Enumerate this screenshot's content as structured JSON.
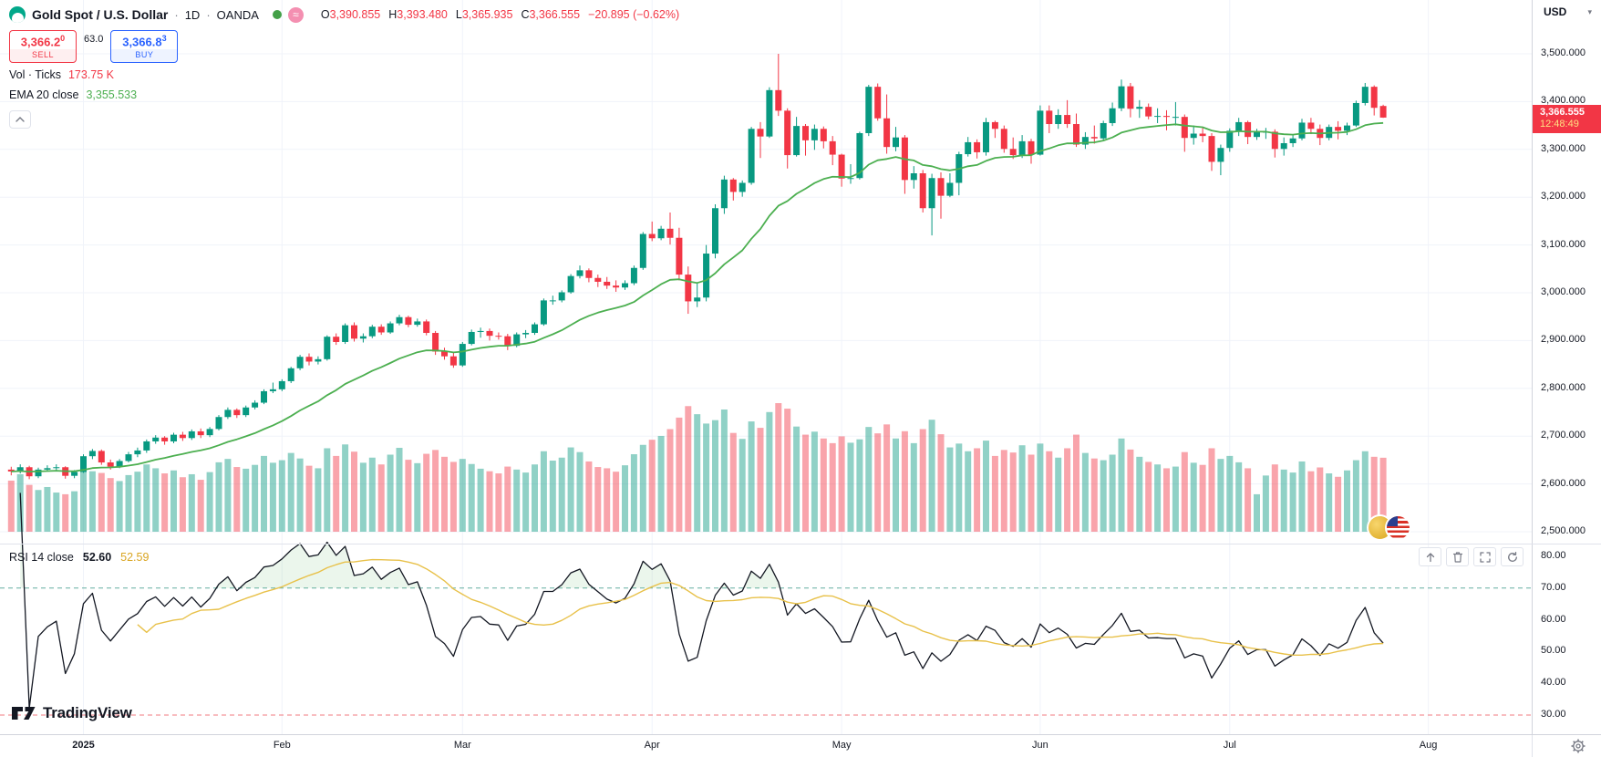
{
  "header": {
    "symbol": "Gold Spot / U.S. Dollar",
    "separator": "·",
    "interval": "1D",
    "exchange": "OANDA",
    "currency": "USD",
    "ohlc": {
      "o_label": "O",
      "o": "3,390.855",
      "h_label": "H",
      "h": "3,393.480",
      "l_label": "L",
      "l": "3,365.935",
      "c_label": "C",
      "c": "3,366.555",
      "change": "−20.895 (−0.62%)"
    }
  },
  "icons": {
    "caret_down": "▾",
    "approx": "≈"
  },
  "trade_panel": {
    "sell_price_main": "3,366.2",
    "sell_price_sup": "0",
    "sell_label": "SELL",
    "spread": "63.0",
    "buy_price_main": "3,366.8",
    "buy_price_sup": "3",
    "buy_label": "BUY"
  },
  "legends": {
    "volume": {
      "title": "Vol · Ticks",
      "value": "173.75 K"
    },
    "ema": {
      "title": "EMA 20 close",
      "value": "3,355.533"
    },
    "rsi": {
      "title": "RSI 14 close",
      "value": "52.60",
      "ma_value": "52.59"
    }
  },
  "price_label": {
    "price": "3,366.555",
    "countdown": "12:48:49"
  },
  "watermark": "TradingView",
  "price_axis": {
    "labels": [
      {
        "text": "3,500.000",
        "value": 3500
      },
      {
        "text": "3,400.000",
        "value": 3400
      },
      {
        "text": "3,300.000",
        "value": 3300
      },
      {
        "text": "3,200.000",
        "value": 3200
      },
      {
        "text": "3,100.000",
        "value": 3100
      },
      {
        "text": "3,000.000",
        "value": 3000
      },
      {
        "text": "2,900.000",
        "value": 2900
      },
      {
        "text": "2,800.000",
        "value": 2800
      },
      {
        "text": "2,700.000",
        "value": 2700
      },
      {
        "text": "2,600.000",
        "value": 2600
      },
      {
        "text": "2,500.000",
        "value": 2500
      }
    ]
  },
  "rsi_axis": {
    "labels": [
      {
        "text": "80.00",
        "value": 80
      },
      {
        "text": "70.00",
        "value": 70
      },
      {
        "text": "60.00",
        "value": 60
      },
      {
        "text": "50.00",
        "value": 50
      },
      {
        "text": "40.00",
        "value": 40
      },
      {
        "text": "30.00",
        "value": 30
      }
    ]
  },
  "time_axis": {
    "labels": [
      {
        "text": "2025",
        "index": 8,
        "strong": true
      },
      {
        "text": "Feb",
        "index": 30
      },
      {
        "text": "Mar",
        "index": 50
      },
      {
        "text": "Apr",
        "index": 71
      },
      {
        "text": "May",
        "index": 92
      },
      {
        "text": "Jun",
        "index": 114
      },
      {
        "text": "Jul",
        "index": 135
      },
      {
        "text": "Aug",
        "index": 157
      }
    ]
  },
  "colors": {
    "up": "#089981",
    "down": "#F23645",
    "volume_up": "rgba(8,153,129,0.45)",
    "volume_down": "rgba(242,54,69,0.45)",
    "ema": "#4CAF50",
    "rsi_line": "#131722",
    "rsi_ma": "#E8C14A",
    "rsi_fill": "rgba(102,187,106,0.13)",
    "band_upper": "#63ADA0",
    "band_lower": "#F07B81",
    "buy": "#2962FF",
    "sell": "#F23645",
    "grid": "#F0F3FA",
    "axis_text": "#131722",
    "muted_text": "#787B86",
    "price_tag_bg": "#F23645",
    "price_tag_text": "#FFFFFF",
    "countdown_text": "#FFE082"
  },
  "chart_data": {
    "type": "candlestick+volume+rsi",
    "title": "Gold Spot / U.S. Dollar, 1D, OANDA",
    "ylabel": "USD",
    "ylim": [
      2450,
      3610
    ],
    "rsi_ylim": [
      25,
      85
    ],
    "ema_period": 20,
    "rsi_period": 14,
    "rsi_bands": [
      70,
      30
    ],
    "candles": [
      [
        2630,
        2636,
        2618,
        2626
      ],
      [
        2626,
        2641,
        2622,
        2635
      ],
      [
        2635,
        2638,
        2610,
        2616
      ],
      [
        2616,
        2634,
        2612,
        2630
      ],
      [
        2630,
        2639,
        2626,
        2633
      ],
      [
        2633,
        2641,
        2628,
        2635
      ],
      [
        2635,
        2637,
        2611,
        2617
      ],
      [
        2617,
        2629,
        2612,
        2625
      ],
      [
        2625,
        2662,
        2623,
        2658
      ],
      [
        2658,
        2673,
        2652,
        2669
      ],
      [
        2669,
        2672,
        2640,
        2645
      ],
      [
        2645,
        2651,
        2630,
        2636
      ],
      [
        2636,
        2652,
        2633,
        2648
      ],
      [
        2648,
        2667,
        2645,
        2662
      ],
      [
        2662,
        2676,
        2656,
        2670
      ],
      [
        2670,
        2693,
        2665,
        2689
      ],
      [
        2689,
        2702,
        2684,
        2697
      ],
      [
        2697,
        2700,
        2682,
        2689
      ],
      [
        2689,
        2707,
        2685,
        2703
      ],
      [
        2703,
        2709,
        2690,
        2696
      ],
      [
        2696,
        2714,
        2692,
        2710
      ],
      [
        2710,
        2716,
        2696,
        2702
      ],
      [
        2702,
        2719,
        2698,
        2715
      ],
      [
        2715,
        2744,
        2712,
        2740
      ],
      [
        2740,
        2760,
        2736,
        2755
      ],
      [
        2755,
        2758,
        2738,
        2744
      ],
      [
        2744,
        2764,
        2740,
        2760
      ],
      [
        2760,
        2775,
        2756,
        2770
      ],
      [
        2770,
        2798,
        2767,
        2794
      ],
      [
        2794,
        2812,
        2790,
        2798
      ],
      [
        2798,
        2819,
        2794,
        2815
      ],
      [
        2815,
        2845,
        2811,
        2842
      ],
      [
        2842,
        2870,
        2838,
        2866
      ],
      [
        2866,
        2873,
        2848,
        2856
      ],
      [
        2856,
        2867,
        2850,
        2861
      ],
      [
        2861,
        2911,
        2858,
        2908
      ],
      [
        2908,
        2915,
        2891,
        2897
      ],
      [
        2897,
        2936,
        2893,
        2932
      ],
      [
        2932,
        2938,
        2898,
        2904
      ],
      [
        2904,
        2915,
        2896,
        2909
      ],
      [
        2909,
        2933,
        2905,
        2929
      ],
      [
        2929,
        2934,
        2912,
        2917
      ],
      [
        2917,
        2940,
        2914,
        2936
      ],
      [
        2936,
        2954,
        2932,
        2949
      ],
      [
        2949,
        2952,
        2928,
        2933
      ],
      [
        2933,
        2946,
        2929,
        2940
      ],
      [
        2940,
        2944,
        2911,
        2916
      ],
      [
        2916,
        2920,
        2870,
        2877
      ],
      [
        2877,
        2885,
        2860,
        2867
      ],
      [
        2867,
        2874,
        2843,
        2848
      ],
      [
        2848,
        2897,
        2845,
        2893
      ],
      [
        2893,
        2923,
        2890,
        2918
      ],
      [
        2918,
        2927,
        2906,
        2920
      ],
      [
        2920,
        2925,
        2900,
        2910
      ],
      [
        2910,
        2917,
        2902,
        2909
      ],
      [
        2909,
        2914,
        2880,
        2889
      ],
      [
        2889,
        2917,
        2886,
        2913
      ],
      [
        2913,
        2922,
        2905,
        2916
      ],
      [
        2916,
        2938,
        2912,
        2934
      ],
      [
        2934,
        2988,
        2931,
        2984
      ],
      [
        2984,
        2994,
        2975,
        2984
      ],
      [
        2984,
        3005,
        2980,
        3001
      ],
      [
        3001,
        3039,
        2998,
        3035
      ],
      [
        3035,
        3057,
        3030,
        3047
      ],
      [
        3047,
        3051,
        3022,
        3031
      ],
      [
        3031,
        3038,
        3012,
        3023
      ],
      [
        3023,
        3033,
        3008,
        3015
      ],
      [
        3015,
        3026,
        3002,
        3011
      ],
      [
        3011,
        3026,
        3006,
        3020
      ],
      [
        3020,
        3057,
        3016,
        3052
      ],
      [
        3052,
        3127,
        3048,
        3123
      ],
      [
        3123,
        3149,
        3108,
        3114
      ],
      [
        3114,
        3140,
        3110,
        3134
      ],
      [
        3134,
        3168,
        3101,
        3115
      ],
      [
        3115,
        3136,
        3026,
        3038
      ],
      [
        3038,
        3055,
        2956,
        2982
      ],
      [
        2982,
        3022,
        2970,
        2990
      ],
      [
        2990,
        3100,
        2982,
        3082
      ],
      [
        3082,
        3185,
        3072,
        3177
      ],
      [
        3177,
        3245,
        3165,
        3237
      ],
      [
        3237,
        3240,
        3193,
        3211
      ],
      [
        3211,
        3235,
        3201,
        3230
      ],
      [
        3230,
        3347,
        3226,
        3343
      ],
      [
        3343,
        3357,
        3282,
        3327
      ],
      [
        3327,
        3430,
        3324,
        3424
      ],
      [
        3424,
        3500,
        3370,
        3381
      ],
      [
        3381,
        3386,
        3260,
        3288
      ],
      [
        3288,
        3368,
        3285,
        3349
      ],
      [
        3349,
        3353,
        3287,
        3319
      ],
      [
        3319,
        3352,
        3299,
        3343
      ],
      [
        3343,
        3348,
        3302,
        3317
      ],
      [
        3317,
        3328,
        3267,
        3289
      ],
      [
        3289,
        3291,
        3222,
        3239
      ],
      [
        3239,
        3269,
        3228,
        3240
      ],
      [
        3240,
        3337,
        3237,
        3334
      ],
      [
        3334,
        3435,
        3328,
        3431
      ],
      [
        3431,
        3438,
        3360,
        3365
      ],
      [
        3365,
        3415,
        3291,
        3305
      ],
      [
        3305,
        3347,
        3296,
        3325
      ],
      [
        3325,
        3330,
        3207,
        3236
      ],
      [
        3236,
        3265,
        3218,
        3250
      ],
      [
        3250,
        3257,
        3168,
        3177
      ],
      [
        3177,
        3249,
        3120,
        3240
      ],
      [
        3240,
        3252,
        3155,
        3203
      ],
      [
        3203,
        3250,
        3200,
        3230
      ],
      [
        3230,
        3295,
        3204,
        3290
      ],
      [
        3290,
        3326,
        3285,
        3315
      ],
      [
        3315,
        3321,
        3281,
        3294
      ],
      [
        3294,
        3366,
        3287,
        3357
      ],
      [
        3357,
        3360,
        3324,
        3343
      ],
      [
        3343,
        3350,
        3293,
        3301
      ],
      [
        3301,
        3325,
        3280,
        3288
      ],
      [
        3288,
        3330,
        3282,
        3317
      ],
      [
        3317,
        3322,
        3270,
        3289
      ],
      [
        3289,
        3392,
        3287,
        3381
      ],
      [
        3381,
        3392,
        3334,
        3353
      ],
      [
        3353,
        3384,
        3343,
        3372
      ],
      [
        3372,
        3403,
        3345,
        3353
      ],
      [
        3353,
        3375,
        3305,
        3310
      ],
      [
        3310,
        3336,
        3301,
        3326
      ],
      [
        3326,
        3350,
        3312,
        3323
      ],
      [
        3323,
        3360,
        3318,
        3355
      ],
      [
        3355,
        3398,
        3349,
        3386
      ],
      [
        3386,
        3446,
        3380,
        3432
      ],
      [
        3432,
        3439,
        3367,
        3385
      ],
      [
        3385,
        3403,
        3366,
        3389
      ],
      [
        3389,
        3396,
        3363,
        3369
      ],
      [
        3369,
        3386,
        3355,
        3370
      ],
      [
        3370,
        3382,
        3340,
        3368
      ],
      [
        3368,
        3399,
        3350,
        3368
      ],
      [
        3368,
        3373,
        3295,
        3324
      ],
      [
        3324,
        3350,
        3310,
        3333
      ],
      [
        3333,
        3345,
        3315,
        3328
      ],
      [
        3328,
        3334,
        3255,
        3274
      ],
      [
        3274,
        3310,
        3246,
        3303
      ],
      [
        3303,
        3344,
        3295,
        3339
      ],
      [
        3339,
        3366,
        3328,
        3357
      ],
      [
        3357,
        3360,
        3311,
        3326
      ],
      [
        3326,
        3343,
        3320,
        3337
      ],
      [
        3337,
        3345,
        3322,
        3337
      ],
      [
        3337,
        3342,
        3283,
        3301
      ],
      [
        3301,
        3325,
        3287,
        3313
      ],
      [
        3313,
        3330,
        3305,
        3323
      ],
      [
        3323,
        3364,
        3319,
        3356
      ],
      [
        3356,
        3366,
        3332,
        3343
      ],
      [
        3343,
        3352,
        3309,
        3324
      ],
      [
        3324,
        3352,
        3319,
        3347
      ],
      [
        3347,
        3359,
        3321,
        3339
      ],
      [
        3339,
        3356,
        3330,
        3350
      ],
      [
        3350,
        3402,
        3347,
        3397
      ],
      [
        3397,
        3439,
        3392,
        3431
      ],
      [
        3431,
        3434,
        3371,
        3387
      ],
      [
        3390.855,
        3393.48,
        3365.935,
        3366.555
      ]
    ],
    "volumes_k": [
      120,
      135,
      110,
      98,
      105,
      92,
      88,
      95,
      150,
      142,
      138,
      126,
      119,
      133,
      141,
      158,
      149,
      137,
      144,
      128,
      135,
      122,
      140,
      163,
      171,
      152,
      148,
      157,
      178,
      162,
      168,
      185,
      172,
      155,
      149,
      196,
      178,
      205,
      188,
      162,
      174,
      158,
      181,
      197,
      169,
      161,
      183,
      192,
      176,
      164,
      171,
      159,
      148,
      142,
      137,
      153,
      146,
      139,
      158,
      189,
      167,
      174,
      198,
      187,
      165,
      152,
      149,
      141,
      156,
      182,
      204,
      216,
      225,
      241,
      268,
      295,
      276,
      254,
      262,
      287,
      232,
      218,
      259,
      244,
      281,
      302,
      289,
      247,
      228,
      235,
      219,
      208,
      224,
      209,
      217,
      246,
      231,
      252,
      219,
      236,
      208,
      241,
      263,
      229,
      198,
      207,
      189,
      196,
      214,
      178,
      192,
      186,
      203,
      181,
      207,
      189,
      174,
      196,
      228,
      185,
      172,
      168,
      181,
      219,
      193,
      176,
      164,
      158,
      149,
      153,
      187,
      162,
      157,
      196,
      171,
      178,
      163,
      149,
      88,
      132,
      158,
      146,
      139,
      165,
      142,
      151,
      137,
      129,
      144,
      168,
      189,
      176,
      173.75
    ]
  }
}
